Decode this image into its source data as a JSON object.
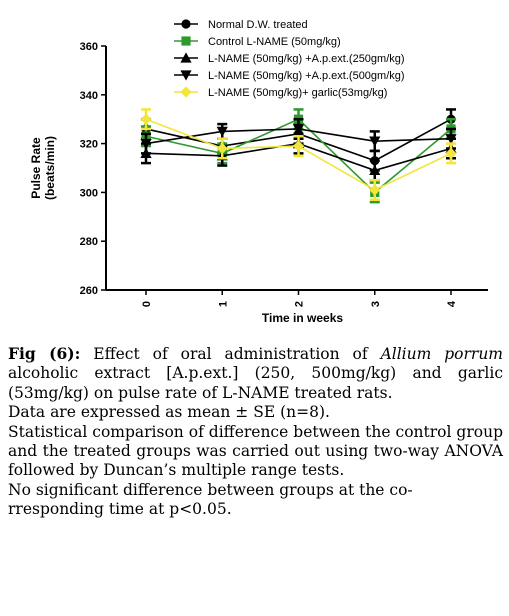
{
  "chart_data": {
    "type": "line",
    "xlabel": "Time in weeks",
    "ylabel_line1": "Pulse Rate",
    "ylabel_line2": "(beats/min)",
    "x": [
      0,
      1,
      2,
      3,
      4
    ],
    "x_tick_labels": [
      "0",
      "1",
      "2",
      "3",
      "4"
    ],
    "ylim": [
      260,
      360
    ],
    "y_ticks": [
      260,
      280,
      300,
      320,
      340,
      360
    ],
    "grid": false,
    "legend_position": "top",
    "series": [
      {
        "name": "Normal D.W. treated",
        "color": "#000000",
        "marker": "circle",
        "values": [
          326,
          319,
          324,
          313,
          330
        ],
        "errors": [
          4,
          3,
          4,
          4,
          4
        ]
      },
      {
        "name": "Control L-NAME (50mg/kg)",
        "color": "#2e9a2e",
        "marker": "square",
        "values": [
          323,
          316,
          330,
          300,
          326
        ],
        "errors": [
          4,
          4,
          4,
          4,
          4
        ]
      },
      {
        "name": "L-NAME (50mg/kg) +A.p.ext.(250gm/kg)",
        "color": "#000000",
        "marker": "triangle-up",
        "values": [
          316,
          315,
          320,
          309,
          318
        ],
        "errors": [
          4,
          4,
          4,
          4,
          4
        ]
      },
      {
        "name": "L-NAME (50mg/kg) +A.p.ext.(500gm/kg)",
        "color": "#000000",
        "marker": "triangle-down",
        "values": [
          320,
          325,
          326,
          321,
          322
        ],
        "errors": [
          4,
          3,
          4,
          4,
          4
        ]
      },
      {
        "name": "L-NAME (50mg/kg)+ garlic(53mg/kg)",
        "color": "#f2e63a",
        "marker": "diamond",
        "values": [
          330,
          318,
          319,
          301,
          316
        ],
        "errors": [
          4,
          4,
          4,
          4,
          4
        ]
      }
    ]
  },
  "caption": {
    "fig_label": "Fig (6):",
    "line1": " Effect of oral administration of ",
    "species": "Allium porrum",
    "line1b": " alcoholic extract [A.p.ext.] (250, 500mg/kg) and garlic (53mg/kg) on pulse rate of L-NAME treated rats.",
    "stats": "Data are expressed as mean ± SE (n=8).",
    "method": "Statistical comparison of difference between the control group and the treated groups was carried out using two-way ANOVA followed by Duncan’s multiple range tests.",
    "significance": "No significant difference between groups at the co-rresponding time at p<0.05."
  }
}
